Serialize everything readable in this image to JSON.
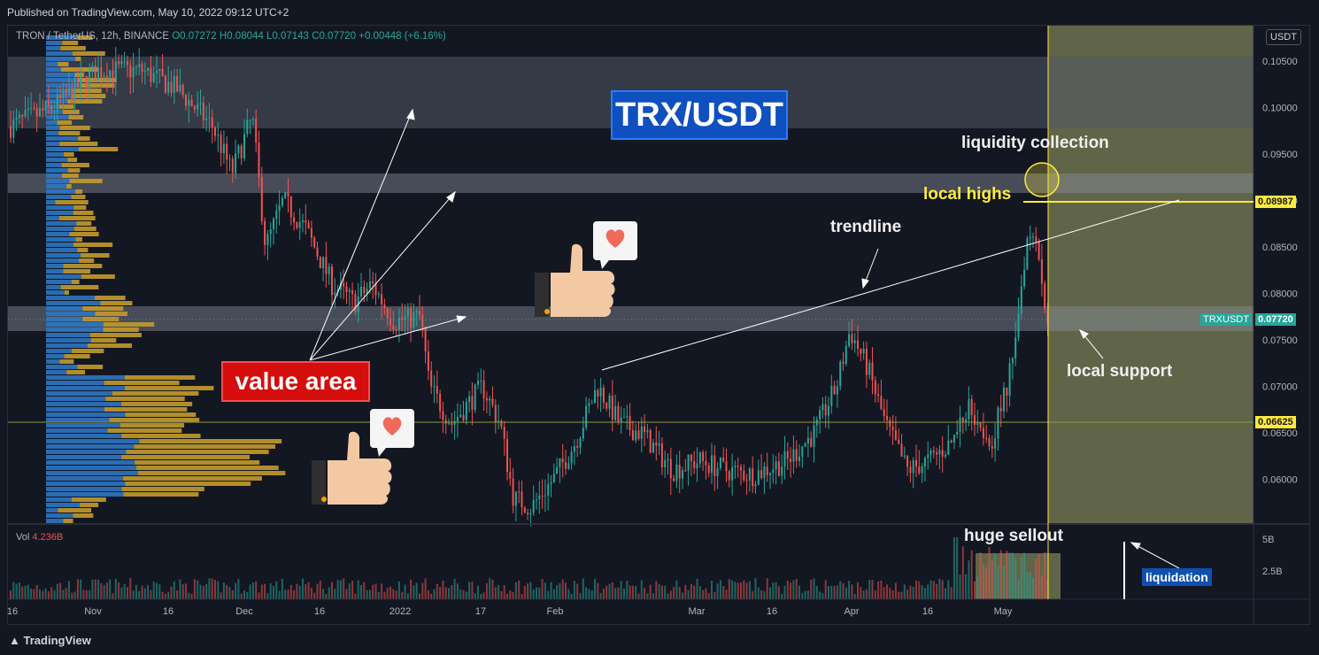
{
  "published": "Published on TradingView.com, May 10, 2022 09:12 UTC+2",
  "legend": {
    "symbol": "TRON / TetherUS, 12h, BINANCE",
    "open": "O0.07272",
    "high": "H0.08044",
    "low": "L0.07143",
    "close": "C0.07720",
    "change": "+0.00448 (+6.16%)"
  },
  "currency_button": "USDT",
  "title": "TRX/USDT",
  "volume_legend": {
    "label": "Vol",
    "value": "4.236B"
  },
  "annotations": {
    "value_area": "value area",
    "trendline": "trendline",
    "liquidity_collection": "liquidity collection",
    "local_highs": "local highs",
    "local_support": "local support",
    "huge_sellout": "huge sellout",
    "liquidation": "liquidation"
  },
  "price_tags": {
    "local_high": "0.08987",
    "symbol_label": "TRXUSDT",
    "last": "0.07720",
    "support_low": "0.06625"
  },
  "colors": {
    "up": "#26a69a",
    "down": "#ef5350",
    "background": "#131722",
    "highlight_zone": "#6f7350",
    "yellow": "#ffeb3b",
    "title_bg": "#0f4fbf",
    "value_area_bg": "#d40d0d"
  },
  "footer": "TradingView",
  "icons": [
    "thumbs-up-heart-icon",
    "thumbs-up-heart-icon"
  ],
  "chart_data": {
    "type": "candlestick",
    "y_axis": {
      "ticks": [
        "0.10500",
        "0.10000",
        "0.09500",
        "0.09000",
        "0.08500",
        "0.08000",
        "0.07500",
        "0.07000",
        "0.06500",
        "0.06000"
      ],
      "ylim": [
        0.0555,
        0.107
      ]
    },
    "x_axis": {
      "ticks": [
        "16",
        "Nov",
        "16",
        "Dec",
        "16",
        "2022",
        "17",
        "Feb",
        "Mar",
        "16",
        "Apr",
        "16",
        "May"
      ]
    },
    "horizontal_levels": [
      0.08987,
      0.06625
    ],
    "zones": [
      [
        0.098,
        0.1054
      ],
      [
        0.0906,
        0.0927
      ],
      [
        0.076,
        0.0787
      ]
    ],
    "trendline": [
      [
        "Jan 22",
        0.0716
      ],
      [
        "Mar 28",
        0.0797
      ],
      [
        "May 12",
        0.09
      ]
    ],
    "volume_axis": {
      "ticks": [
        "5B",
        "2.5B"
      ]
    },
    "highlight_from": "May 8"
  }
}
